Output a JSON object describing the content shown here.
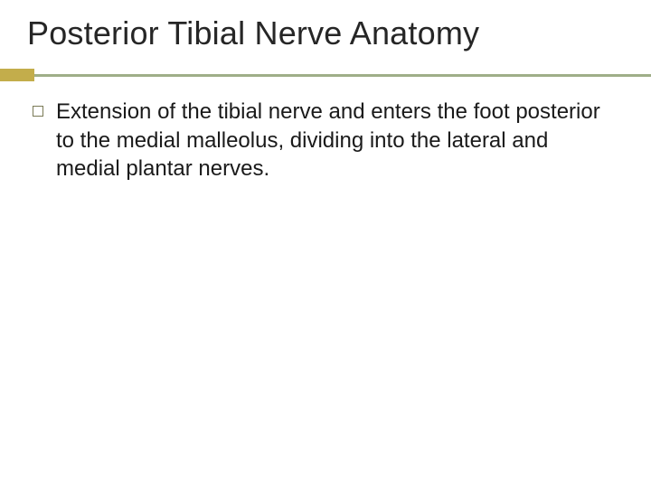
{
  "title": {
    "text": "Posterior Tibial Nerve Anatomy",
    "fontsize": 36,
    "color": "#262626"
  },
  "accent": {
    "block_color": "#c3ad4b",
    "block_width": 38,
    "block_height": 14,
    "line_color": "#9fae88",
    "line_height": 3
  },
  "bullets": [
    {
      "text": "Extension of the tibial nerve and enters the foot posterior to the medial malleolus, dividing into the lateral and medial plantar nerves.",
      "fontsize": 24,
      "color": "#1a1a1a",
      "marker_border_color": "#7a7a56"
    }
  ],
  "background_color": "#ffffff"
}
